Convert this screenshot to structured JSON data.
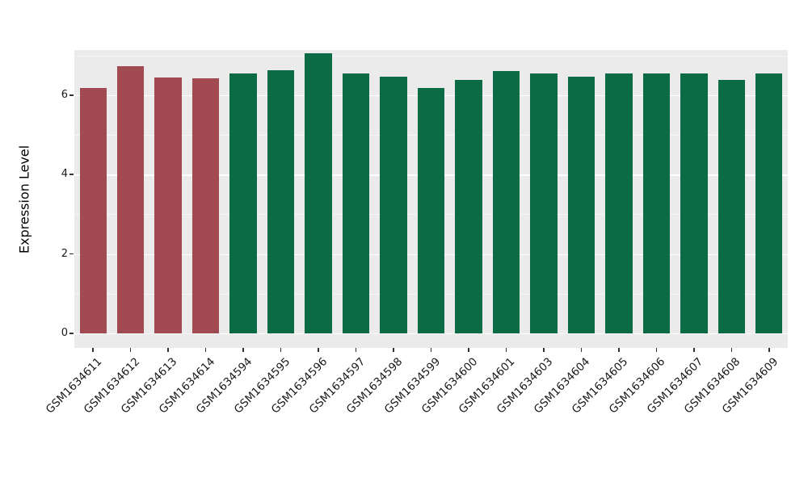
{
  "chart_data": {
    "type": "bar",
    "title": "",
    "xlabel": "",
    "ylabel": "Expression Level",
    "categories": [
      "GSM1634611",
      "GSM1634612",
      "GSM1634613",
      "GSM1634614",
      "GSM1634594",
      "GSM1634595",
      "GSM1634596",
      "GSM1634597",
      "GSM1634598",
      "GSM1634599",
      "GSM1634600",
      "GSM1634601",
      "GSM1634603",
      "GSM1634604",
      "GSM1634605",
      "GSM1634606",
      "GSM1634607",
      "GSM1634608",
      "GSM1634609"
    ],
    "values": [
      6.17,
      6.73,
      6.44,
      6.42,
      6.54,
      6.62,
      7.06,
      6.54,
      6.46,
      6.17,
      6.38,
      6.61,
      6.54,
      6.46,
      6.54,
      6.54,
      6.54,
      6.38,
      6.54
    ],
    "colors": [
      "#A14A52",
      "#A14A52",
      "#A14A52",
      "#A14A52",
      "#0B6B45",
      "#0B6B45",
      "#0B6B45",
      "#0B6B45",
      "#0B6B45",
      "#0B6B45",
      "#0B6B45",
      "#0B6B45",
      "#0B6B45",
      "#0B6B45",
      "#0B6B45",
      "#0B6B45",
      "#0B6B45",
      "#0B6B45",
      "#0B6B45"
    ],
    "yticks": [
      0,
      2,
      4,
      6
    ],
    "ylim": [
      0,
      7.3
    ],
    "grid": {
      "major": [
        0,
        2,
        4,
        6
      ],
      "minor": [
        1,
        3,
        5,
        7
      ]
    },
    "panel_bg": "#EBEBEB",
    "grid_color": "#FFFFFF",
    "legend": "none"
  }
}
